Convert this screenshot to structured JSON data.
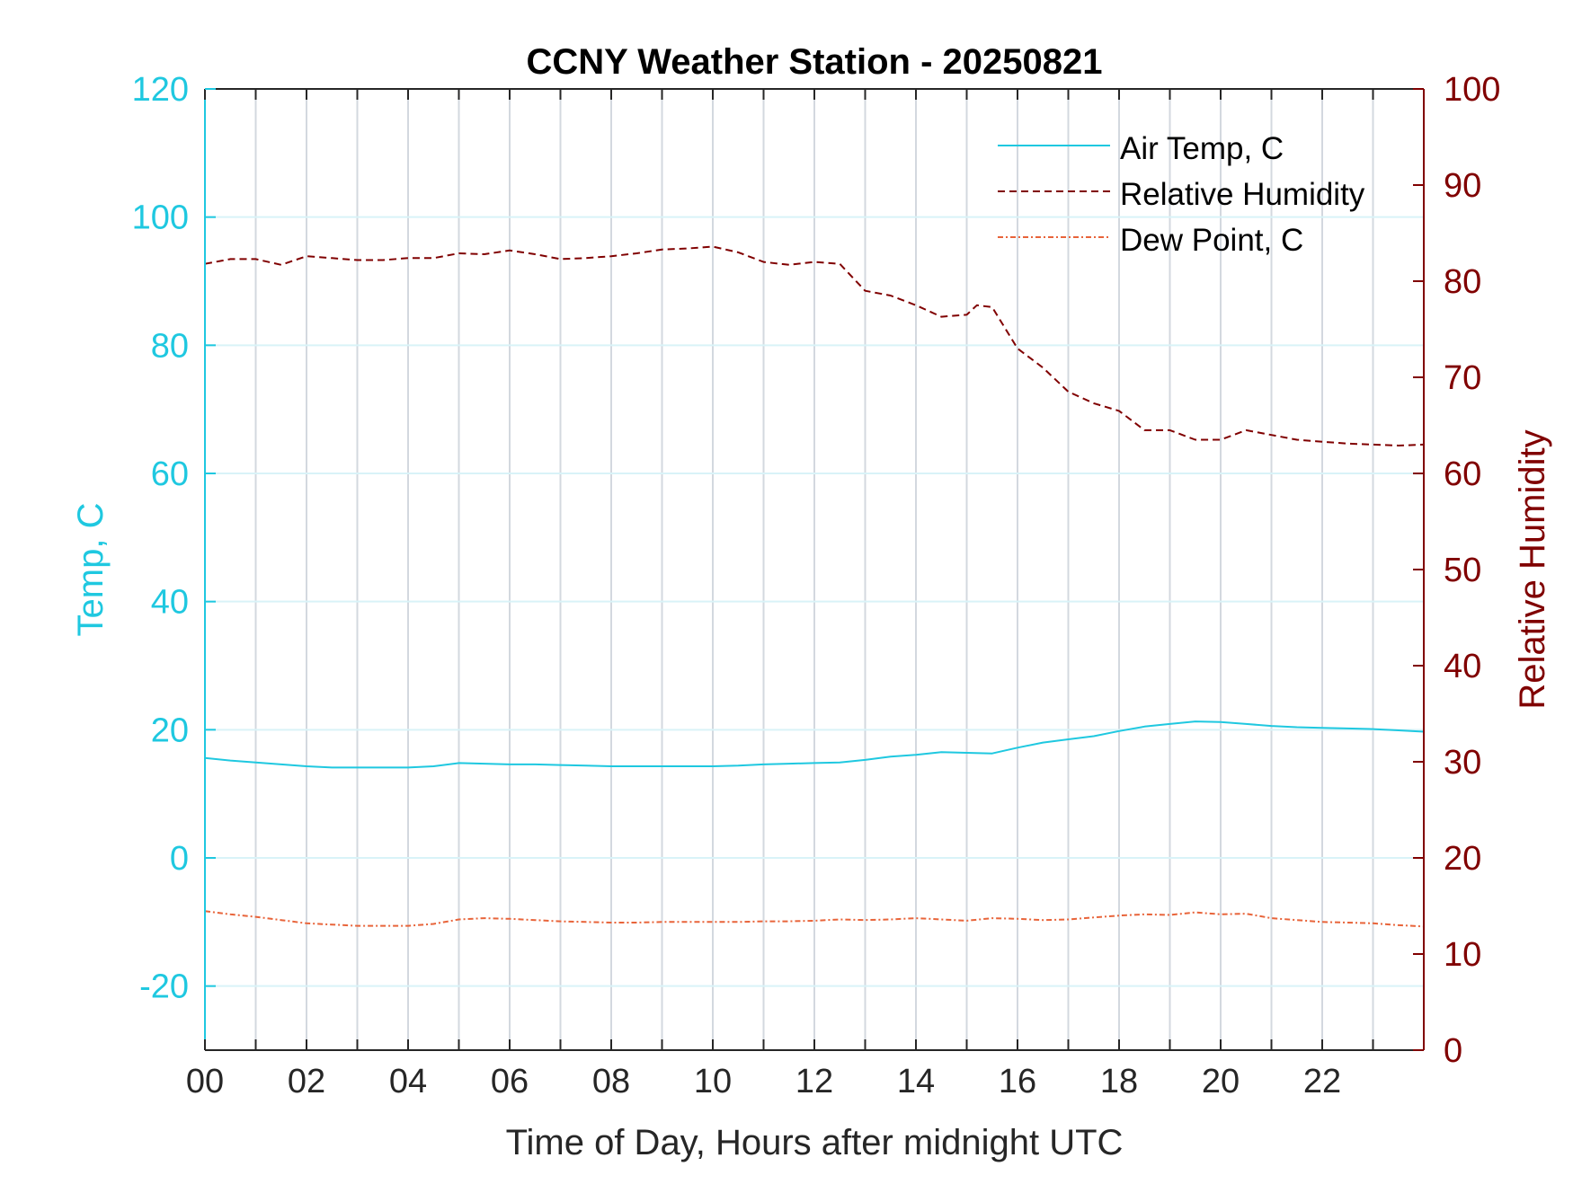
{
  "chart_data": {
    "type": "line",
    "title": "CCNY Weather Station - 20250821",
    "xlabel": "Time of Day, Hours after midnight UTC",
    "ylabel_left": "Temp, C",
    "ylabel_right": "Relative Humidity",
    "xlim": [
      0,
      24
    ],
    "ylim_left": [
      -30,
      120
    ],
    "ylim_right": [
      0,
      100
    ],
    "x_ticks": [
      "00",
      "02",
      "04",
      "06",
      "08",
      "10",
      "12",
      "14",
      "16",
      "18",
      "20",
      "22"
    ],
    "y_ticks_left": [
      "-20",
      "0",
      "20",
      "40",
      "60",
      "80",
      "100",
      "120"
    ],
    "y_ticks_right": [
      "0",
      "10",
      "20",
      "30",
      "40",
      "50",
      "60",
      "70",
      "80",
      "90",
      "100"
    ],
    "grid": true,
    "legend_position": "top-right",
    "colors": {
      "left_axis": "#1fc8e0",
      "right_axis": "#800000",
      "air_temp": "#1fc8e0",
      "relative_humidity": "#800000",
      "dew_point": "#e8643a",
      "grid_vertical": "#d3d8df",
      "grid_horizontal": "#d9f3f8",
      "title": "#000000",
      "x_axis": "#262626"
    },
    "series": [
      {
        "name": "Air Temp, C",
        "axis": "left",
        "style": "solid",
        "x": [
          0,
          0.5,
          1,
          1.5,
          2,
          2.5,
          3,
          3.5,
          4,
          4.5,
          5,
          5.5,
          6,
          6.5,
          7,
          7.5,
          8,
          8.5,
          9,
          9.5,
          10,
          10.5,
          11,
          11.5,
          12,
          12.5,
          13,
          13.5,
          14,
          14.5,
          15,
          15.5,
          16,
          16.5,
          17,
          17.5,
          18,
          18.5,
          19,
          19.5,
          20,
          20.5,
          21,
          21.5,
          22,
          22.5,
          23,
          23.5,
          24
        ],
        "y": [
          15.6,
          15.2,
          14.9,
          14.6,
          14.3,
          14.1,
          14.1,
          14.1,
          14.1,
          14.3,
          14.8,
          14.7,
          14.6,
          14.6,
          14.5,
          14.4,
          14.3,
          14.3,
          14.3,
          14.3,
          14.3,
          14.4,
          14.6,
          14.7,
          14.8,
          14.9,
          15.3,
          15.8,
          16.1,
          16.5,
          16.4,
          16.3,
          17.2,
          18.0,
          18.5,
          19.0,
          19.8,
          20.5,
          20.9,
          21.3,
          21.2,
          20.9,
          20.6,
          20.4,
          20.3,
          20.2,
          20.1,
          19.9,
          19.7
        ]
      },
      {
        "name": "Relative Humidity",
        "axis": "right",
        "style": "dashed",
        "x": [
          0,
          0.5,
          1,
          1.5,
          2,
          2.5,
          3,
          3.5,
          4,
          4.5,
          5,
          5.5,
          6,
          6.5,
          7,
          7.5,
          8,
          8.5,
          9,
          9.5,
          10,
          10.5,
          11,
          11.5,
          12,
          12.5,
          13,
          13.5,
          14,
          14.5,
          15,
          15.2,
          15.5,
          16,
          16.5,
          17,
          17.5,
          18,
          18.5,
          19,
          19.5,
          20,
          20.5,
          21,
          21.5,
          22,
          22.5,
          23,
          23.5,
          24
        ],
        "y": [
          81.8,
          82.3,
          82.3,
          81.7,
          82.6,
          82.4,
          82.2,
          82.2,
          82.4,
          82.4,
          82.9,
          82.8,
          83.2,
          82.8,
          82.3,
          82.4,
          82.6,
          82.9,
          83.3,
          83.4,
          83.6,
          83.0,
          82.0,
          81.7,
          82.0,
          81.8,
          79.0,
          78.5,
          77.5,
          76.3,
          76.5,
          77.5,
          77.3,
          73.0,
          71.0,
          68.5,
          67.3,
          66.5,
          64.5,
          64.5,
          63.5,
          63.5,
          64.5,
          64.0,
          63.5,
          63.3,
          63.1,
          63.0,
          62.9,
          63.0
        ]
      },
      {
        "name": "Dew Point, C",
        "axis": "left",
        "style": "dashdot",
        "x": [
          0,
          0.5,
          1,
          1.5,
          2,
          2.5,
          3,
          3.5,
          4,
          4.5,
          5,
          5.5,
          6,
          6.5,
          7,
          7.5,
          8,
          8.5,
          9,
          9.5,
          10,
          10.5,
          11,
          11.5,
          12,
          12.5,
          13,
          13.5,
          14,
          14.5,
          15,
          15.5,
          16,
          16.5,
          17,
          17.5,
          18,
          18.5,
          19,
          19.5,
          20,
          20.5,
          21,
          21.5,
          22,
          22.5,
          23,
          23.5,
          24
        ],
        "y": [
          -8.3,
          -8.8,
          -9.2,
          -9.7,
          -10.2,
          -10.4,
          -10.6,
          -10.6,
          -10.6,
          -10.3,
          -9.6,
          -9.4,
          -9.5,
          -9.7,
          -9.9,
          -10.0,
          -10.1,
          -10.1,
          -10.0,
          -10.0,
          -10.0,
          -10.0,
          -9.9,
          -9.9,
          -9.8,
          -9.6,
          -9.7,
          -9.6,
          -9.4,
          -9.6,
          -9.8,
          -9.4,
          -9.5,
          -9.7,
          -9.6,
          -9.3,
          -9.0,
          -8.8,
          -8.9,
          -8.5,
          -8.8,
          -8.7,
          -9.4,
          -9.7,
          -10.0,
          -10.1,
          -10.2,
          -10.5,
          -10.7
        ]
      }
    ]
  }
}
